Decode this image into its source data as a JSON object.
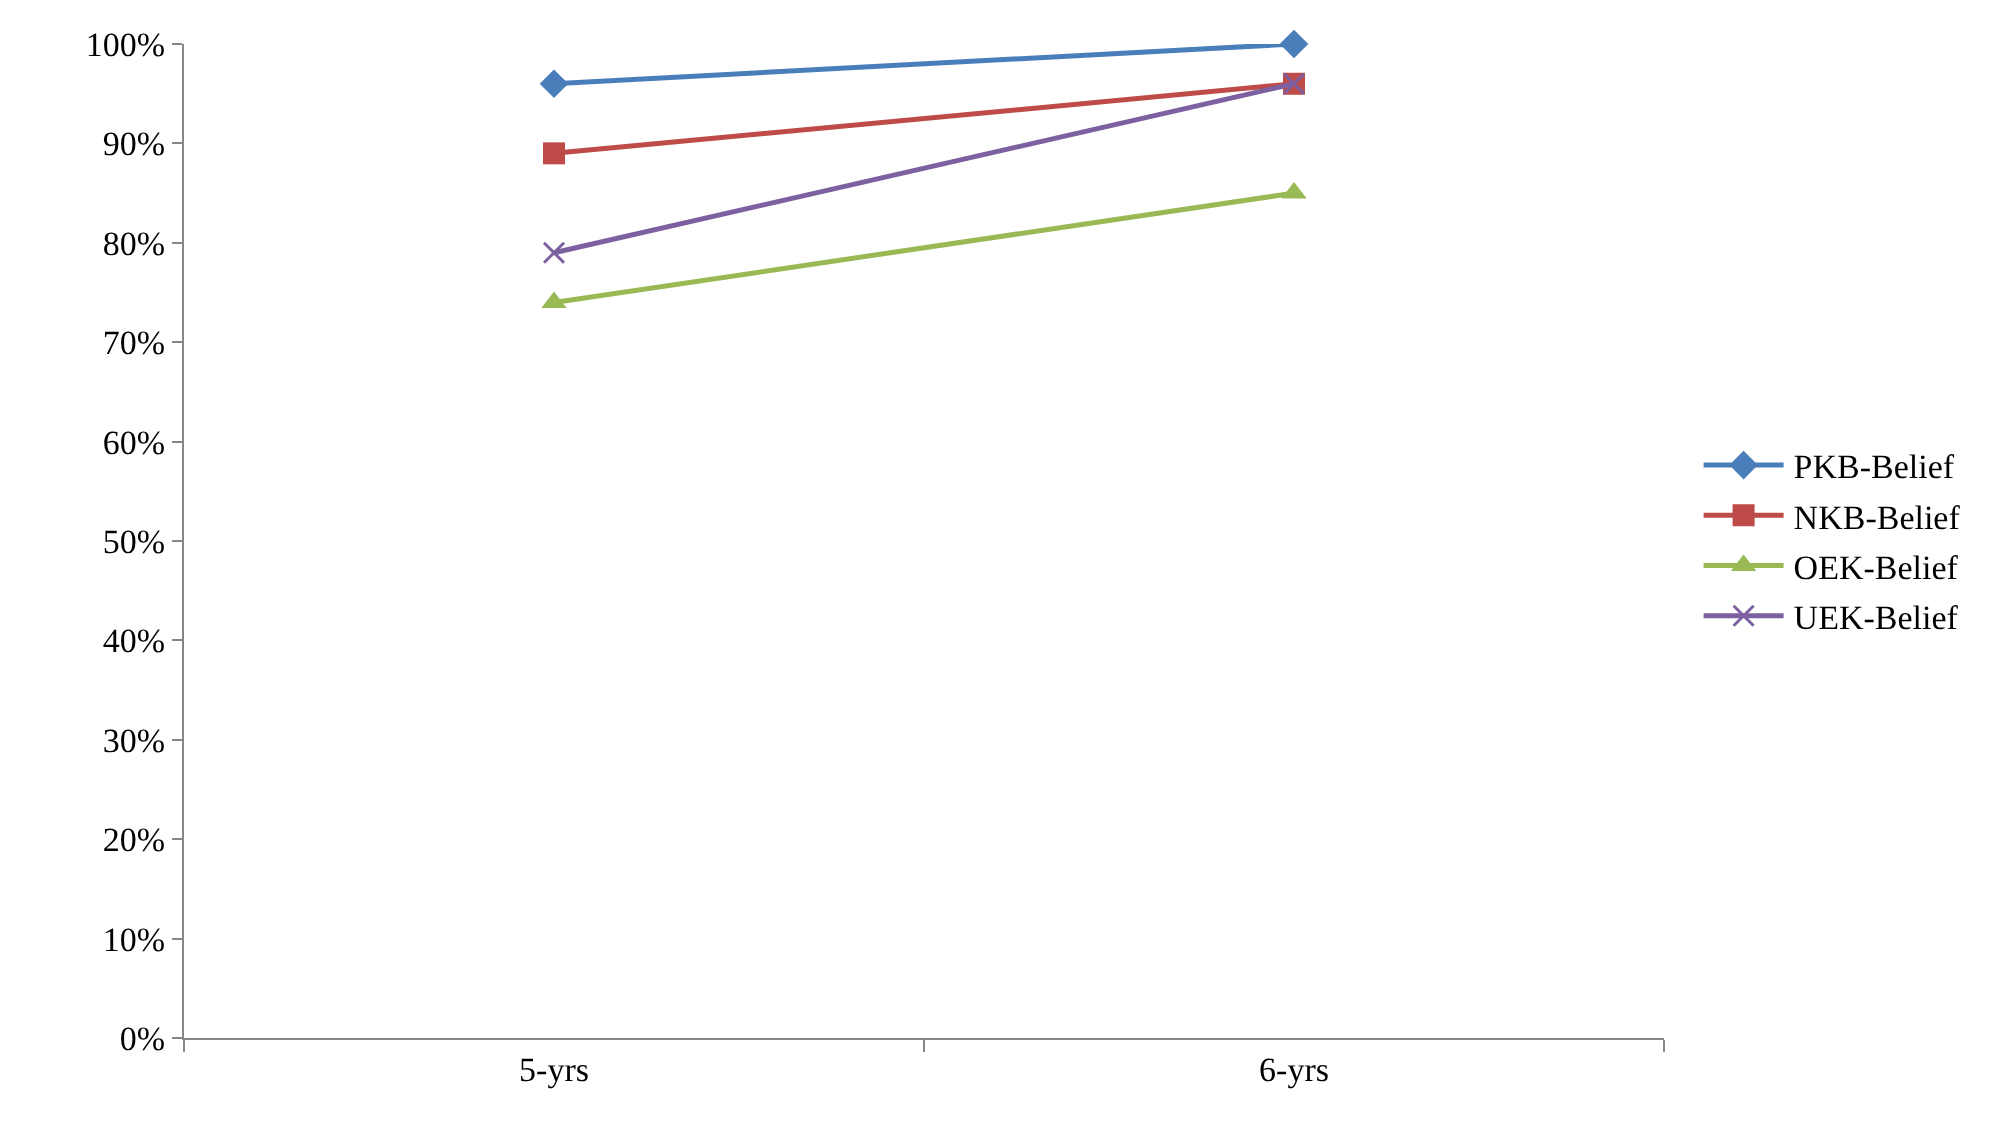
{
  "chart_data": {
    "type": "line",
    "categories": [
      "5-yrs",
      "6-yrs"
    ],
    "series": [
      {
        "name": "PKB-Belief",
        "color": "#4a7ebb",
        "marker": "diamond",
        "values": [
          96,
          100
        ]
      },
      {
        "name": "NKB-Belief",
        "color": "#be4b48",
        "marker": "square",
        "values": [
          89,
          96
        ]
      },
      {
        "name": "OEK-Belief",
        "color": "#98b954",
        "marker": "triangle",
        "values": [
          74,
          85
        ]
      },
      {
        "name": "UEK-Belief",
        "color": "#7d60a0",
        "marker": "cross",
        "values": [
          79,
          96
        ]
      }
    ],
    "ylim": [
      0,
      100
    ],
    "yticks": [
      {
        "value": 0,
        "label": "0%"
      },
      {
        "value": 10,
        "label": "10%"
      },
      {
        "value": 20,
        "label": "20%"
      },
      {
        "value": 30,
        "label": "30%"
      },
      {
        "value": 40,
        "label": "40%"
      },
      {
        "value": 50,
        "label": "50%"
      },
      {
        "value": 60,
        "label": "60%"
      },
      {
        "value": 70,
        "label": "70%"
      },
      {
        "value": 80,
        "label": "80%"
      },
      {
        "value": 90,
        "label": "90%"
      },
      {
        "value": 100,
        "label": "100%"
      }
    ],
    "legend": "right",
    "line_style": "solid"
  }
}
